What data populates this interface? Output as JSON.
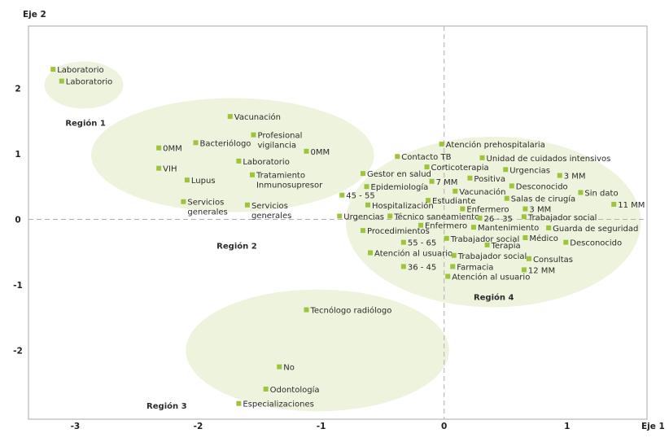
{
  "chart_data": {
    "type": "scatter",
    "xlabel": "Eje 1",
    "ylabel": "Eje 2",
    "xlim": [
      -3.38,
      1.65
    ],
    "ylim": [
      -3.05,
      2.95
    ],
    "x_ticks": [
      -3,
      -2,
      -1,
      0,
      1
    ],
    "y_ticks": [
      2,
      1,
      0,
      -1,
      -2
    ],
    "x_tick_labels": [
      "-3",
      "-2",
      "-1",
      "0",
      "1"
    ],
    "y_tick_labels": [
      "2",
      "1",
      "0",
      "-1",
      "-2"
    ],
    "grid": false,
    "reference_lines": "dashed lines at x=0 and y=0",
    "colors": {
      "marker": "#9dc43b",
      "region_fill": "#eef3dd",
      "reference_line": "#b0b0b0",
      "plot_border": "#aaaaaa"
    },
    "regions": [
      {
        "name": "Región 1",
        "cx": -2.93,
        "cy": 2.05,
        "rx": 0.32,
        "ry": 0.36,
        "label_x": -3.08,
        "label_y": 1.48
      },
      {
        "name": "Región 2",
        "cx": -1.72,
        "cy": 0.98,
        "rx": 1.15,
        "ry": 0.87,
        "label_x": -1.85,
        "label_y": -0.4
      },
      {
        "name": "Región 3",
        "cx": -1.03,
        "cy": -2.0,
        "rx": 1.07,
        "ry": 0.93,
        "label_x": -2.42,
        "label_y": -2.84
      },
      {
        "name": "Región 4",
        "cx": 0.4,
        "cy": -0.04,
        "rx": 1.2,
        "ry": 1.3,
        "label_x": 0.24,
        "label_y": -1.18
      }
    ],
    "points": [
      {
        "label": "Laboratorio",
        "x": -3.18,
        "y": 2.29
      },
      {
        "label": "Laboratorio",
        "x": -3.11,
        "y": 2.11
      },
      {
        "label": "Vacunación",
        "x": -1.74,
        "y": 1.57
      },
      {
        "label": "Bacteriólogo",
        "x": -2.02,
        "y": 1.17
      },
      {
        "label": "Profesional\nvigilancia",
        "x": -1.55,
        "y": 1.29
      },
      {
        "label": "0MM",
        "x": -2.32,
        "y": 1.09
      },
      {
        "label": "0MM",
        "x": -1.12,
        "y": 1.04
      },
      {
        "label": "Laboratorio",
        "x": -1.67,
        "y": 0.89
      },
      {
        "label": "VIH",
        "x": -2.32,
        "y": 0.78
      },
      {
        "label": "Tratamiento\nInmunosupresor",
        "x": -1.56,
        "y": 0.68
      },
      {
        "label": "Lupus",
        "x": -2.09,
        "y": 0.6
      },
      {
        "label": "Servicios\ngenerales",
        "x": -2.12,
        "y": 0.27
      },
      {
        "label": "Servicios\ngenerales",
        "x": -1.6,
        "y": 0.22
      },
      {
        "label": "Atención prehospitalaria",
        "x": -0.02,
        "y": 1.15
      },
      {
        "label": "Contacto TB",
        "x": -0.38,
        "y": 0.96
      },
      {
        "label": "Unidad de cuidados intensivos",
        "x": 0.31,
        "y": 0.94
      },
      {
        "label": "Corticoterapia",
        "x": -0.14,
        "y": 0.8
      },
      {
        "label": "Gestor en salud",
        "x": -0.66,
        "y": 0.7
      },
      {
        "label": "Urgencias",
        "x": 0.5,
        "y": 0.76
      },
      {
        "label": "3 MM",
        "x": 0.94,
        "y": 0.67
      },
      {
        "label": "Positiva",
        "x": 0.21,
        "y": 0.63
      },
      {
        "label": "7 MM",
        "x": -0.1,
        "y": 0.58
      },
      {
        "label": "Epidemiología",
        "x": -0.63,
        "y": 0.5
      },
      {
        "label": "Desconocido",
        "x": 0.55,
        "y": 0.51
      },
      {
        "label": "Vacunación",
        "x": 0.09,
        "y": 0.43
      },
      {
        "label": "45 - 55",
        "x": -0.83,
        "y": 0.37
      },
      {
        "label": "Sin dato",
        "x": 1.11,
        "y": 0.41
      },
      {
        "label": "Salas de cirugía",
        "x": 0.51,
        "y": 0.32
      },
      {
        "label": "Estudiante",
        "x": -0.13,
        "y": 0.29
      },
      {
        "label": "Hospitalización",
        "x": -0.62,
        "y": 0.22
      },
      {
        "label": "Enfermero",
        "x": 0.15,
        "y": 0.16
      },
      {
        "label": "3 MM",
        "x": 0.66,
        "y": 0.16
      },
      {
        "label": "11 MM",
        "x": 1.38,
        "y": 0.23
      },
      {
        "label": "Urgencias",
        "x": -0.85,
        "y": 0.05
      },
      {
        "label": "Técnico saneamiento",
        "x": -0.44,
        "y": 0.05
      },
      {
        "label": "26 - 35",
        "x": 0.29,
        "y": 0.02
      },
      {
        "label": "Trabajador social",
        "x": 0.65,
        "y": 0.04
      },
      {
        "label": "Enfermero",
        "x": -0.19,
        "y": -0.09
      },
      {
        "label": "Mantenimiento",
        "x": 0.24,
        "y": -0.12
      },
      {
        "label": "Guarda de seguridad",
        "x": 0.85,
        "y": -0.13
      },
      {
        "label": "Procedimientos",
        "x": -0.66,
        "y": -0.17
      },
      {
        "label": "Trabajador social",
        "x": 0.02,
        "y": -0.29
      },
      {
        "label": "Médico",
        "x": 0.66,
        "y": -0.28
      },
      {
        "label": "Desconocido",
        "x": 0.99,
        "y": -0.35
      },
      {
        "label": "55 - 65",
        "x": -0.33,
        "y": -0.35
      },
      {
        "label": "Terapia",
        "x": 0.35,
        "y": -0.39
      },
      {
        "label": "Atención al usuario",
        "x": -0.6,
        "y": -0.51
      },
      {
        "label": "Trabajador social",
        "x": 0.08,
        "y": -0.55
      },
      {
        "label": "Consultas",
        "x": 0.69,
        "y": -0.6
      },
      {
        "label": "36 - 45",
        "x": -0.33,
        "y": -0.72
      },
      {
        "label": "Farmacia",
        "x": 0.07,
        "y": -0.72
      },
      {
        "label": "12 MM",
        "x": 0.65,
        "y": -0.77
      },
      {
        "label": "Atención al usuario",
        "x": 0.03,
        "y": -0.87
      },
      {
        "label": "Tecnólogo radiólogo",
        "x": -1.12,
        "y": -1.38
      },
      {
        "label": "No",
        "x": -1.34,
        "y": -2.25
      },
      {
        "label": "Odontología",
        "x": -1.45,
        "y": -2.59
      },
      {
        "label": "Especializaciones",
        "x": -1.67,
        "y": -2.81
      }
    ]
  }
}
